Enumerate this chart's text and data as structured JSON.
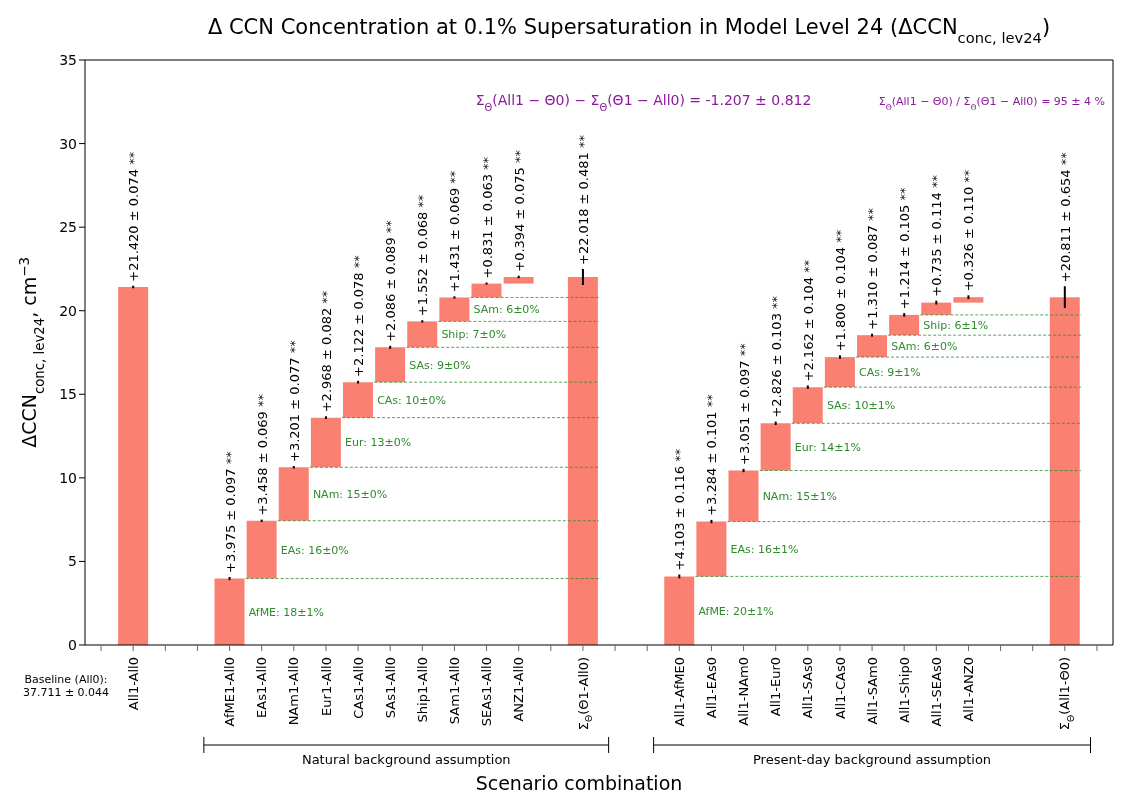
{
  "chart_data": {
    "type": "bar",
    "title": "Δ CCN Concentration at 0.1% Supersaturation in Model Level 24 (ΔCCN$_{conc, lev24}$)",
    "xlabel": "Scenario combination",
    "ylabel": "ΔCCN$_{conc, lev24}$, cm$^{−3}$",
    "categories": [
      null,
      "All1-All0",
      null,
      null,
      "AfME1-All0",
      "EAs1-All0",
      "NAm1-All0",
      "Eur1-All0",
      "CAs1-All0",
      "SAs1-All0",
      "Ship1-All0",
      "SAm1-All0",
      "SEAs1-All0",
      "ANZ1-All0",
      null,
      "Σ$_{Θ}$(Θ1-All0)",
      null,
      null,
      "All1-AfME0",
      "All1-EAs0",
      "All1-NAm0",
      "All1-Eur0",
      "All1-SAs0",
      "All1-CAs0",
      "All1-SAm0",
      "All1-Ship0",
      "All1-SEAs0",
      "All1-ANZ0",
      null,
      null,
      "Σ$_{Θ}$(All1-Θ0)",
      null
    ],
    "values": [
      null,
      21.42,
      null,
      null,
      3.975,
      3.458,
      3.201,
      2.968,
      2.122,
      2.086,
      1.552,
      1.431,
      0.831,
      0.394,
      null,
      22.018,
      null,
      null,
      4.103,
      3.284,
      3.051,
      2.826,
      2.162,
      1.8,
      1.31,
      1.214,
      0.735,
      0.326,
      null,
      null,
      20.811,
      null
    ],
    "base": [
      null,
      0,
      null,
      null,
      0,
      3.975,
      7.433,
      10.634,
      13.602,
      15.724,
      17.81,
      19.362,
      20.793,
      21.624,
      null,
      0,
      null,
      null,
      0,
      4.103,
      7.387,
      10.438,
      13.264,
      15.426,
      17.226,
      18.536,
      19.75,
      20.485,
      null,
      null,
      0,
      null
    ],
    "errors": [
      null,
      0.074,
      null,
      null,
      0.097,
      0.069,
      0.077,
      0.082,
      0.078,
      0.089,
      0.068,
      0.069,
      0.063,
      0.075,
      null,
      0.481,
      null,
      null,
      0.116,
      0.101,
      0.097,
      0.103,
      0.104,
      0.104,
      0.087,
      0.105,
      0.114,
      0.11,
      null,
      null,
      0.654,
      null
    ],
    "value_labels": [
      null,
      "+21.420 ± 0.074 **",
      null,
      null,
      "+3.975 ± 0.097 **",
      "+3.458 ± 0.069 **",
      "+3.201 ± 0.077 **",
      "+2.968 ± 0.082 **",
      "+2.122 ± 0.078 **",
      "+2.086 ± 0.089 **",
      "+1.552 ± 0.068 **",
      "+1.431 ± 0.069 **",
      "+0.831 ± 0.063 **",
      "+0.394 ± 0.075 **",
      null,
      "+22.018 ± 0.481 **",
      null,
      null,
      "+4.103 ± 0.116 **",
      "+3.284 ± 0.101 **",
      "+3.051 ± 0.097 **",
      "+2.826 ± 0.103 **",
      "+2.162 ± 0.104 **",
      "+1.800 ± 0.104 **",
      "+1.310 ± 0.087 **",
      "+1.214 ± 0.105 **",
      "+0.735 ± 0.114 **",
      "+0.326 ± 0.110 **",
      null,
      null,
      "+20.811 ± 0.654 **",
      null
    ],
    "color": "#fa8072",
    "ylim": [
      0,
      35
    ],
    "yticks": [
      0,
      5,
      10,
      15,
      20,
      25,
      30,
      35
    ],
    "annotations": [
      "Σ$_{Θ}$(All1 − Θ0) − Σ$_{Θ}$(Θ1 − All0) =  -1.207 ± 0.812",
      "Σ$_{Θ}$(All1 − Θ0) / Σ$_{Θ}$(Θ1 − All0) = 95 ± 4 %",
      "Baseline (All0):\n37.711 ± 0.044",
      "Natural background assumption",
      "Present-day background assumption",
      "AfME: 18±1%",
      {
        "text": "EAs: 16±0%",
        "x": "EAs1-All0",
        "y": 7.433
      },
      {
        "text": "NAm: 15±0%",
        "x": "NAm1-All0",
        "y": 10.634
      },
      {
        "text": "Eur: 13±0%",
        "x": "Eur1-All0",
        "y": 13.602
      },
      {
        "text": "CAs: 10±0%",
        "x": "CAs1-All0",
        "y": 15.724
      },
      {
        "text": "SAs: 9±0%",
        "x": "SAs1-All0",
        "y": 17.81
      },
      {
        "text": "Ship: 7±0%",
        "x": "Ship1-All0",
        "y": 19.362
      },
      {
        "text": "SAm: 6±0%",
        "x": "SAm1-All0",
        "y": 20.793
      },
      "AfME: 20±1%",
      {
        "text": "EAs: 16±1%",
        "x": "All1-EAs0",
        "y": 7.387
      },
      {
        "text": "NAm: 15±1%",
        "x": "All1-NAm0",
        "y": 10.438
      },
      {
        "text": "Eur: 14±1%",
        "x": "All1-Eur0",
        "y": 13.264
      },
      {
        "text": "SAs: 10±1%",
        "x": "All1-SAs0",
        "y": 15.426
      },
      {
        "text": "CAs: 9±1%",
        "x": "All1-CAs0",
        "y": 17.226
      },
      {
        "text": "SAm: 6±0%",
        "x": "All1-SAm0",
        "y": 18.536
      },
      {
        "text": "Ship: 6±1%",
        "x": "All1-Ship0",
        "y": 19.75
      }
    ]
  }
}
